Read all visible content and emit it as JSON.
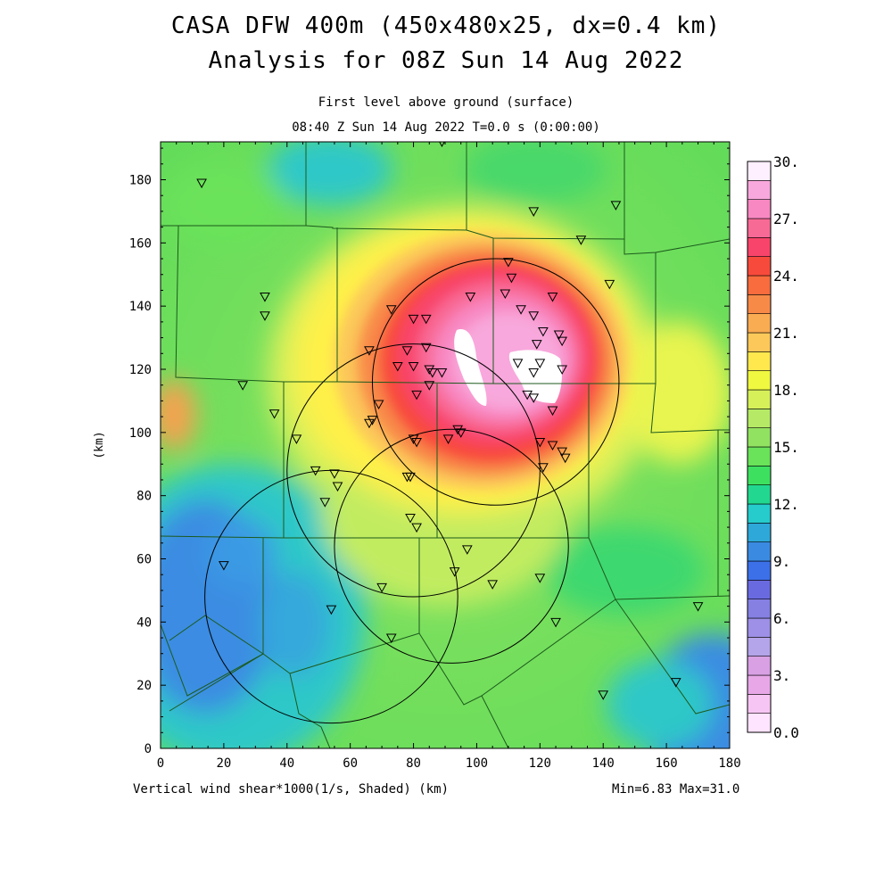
{
  "header": {
    "title_line1": "CASA DFW 400m (450x480x25, dx=0.4 km)",
    "title_line2": "Analysis for 08Z Sun 14 Aug 2022",
    "subtitle_line1": "First level above ground (surface)",
    "subtitle_line2": "08:40 Z Sun 14 Aug 2022    T=0.0 s (0:00:00)"
  },
  "footer": {
    "field_label": "Vertical wind shear*1000(1/s, Shaded)  (km)",
    "minmax": "Min=6.83 Max=31.0"
  },
  "chart_data": {
    "type": "heatmap",
    "field": "Vertical wind shear*1000 (1/s)",
    "xlabel": "(km)",
    "ylabel": "(km)",
    "xlim": [
      0,
      180
    ],
    "ylim": [
      0,
      192
    ],
    "x_ticks": [
      0,
      20,
      40,
      60,
      80,
      100,
      120,
      140,
      160,
      180
    ],
    "y_ticks": [
      0,
      20,
      40,
      60,
      80,
      100,
      120,
      140,
      160,
      180
    ],
    "min": 6.83,
    "max": 31.0,
    "colorbar": {
      "min": 0,
      "max": 30,
      "step": 1.5,
      "labels": [
        "0.0",
        "3.",
        "6.",
        "9.",
        "12.",
        "15.",
        "18.",
        "21.",
        "24.",
        "27.",
        "30."
      ],
      "label_values": [
        0,
        3,
        6,
        9,
        12,
        15,
        18,
        21,
        24,
        27,
        30
      ],
      "colors": [
        "#ffe4ff",
        "#f7c5f4",
        "#e8a8e8",
        "#d9a0e4",
        "#b4a4ea",
        "#9d90e6",
        "#8580e2",
        "#6a6ae0",
        "#3c70e8",
        "#3a8ae2",
        "#2ea8d8",
        "#26cccc",
        "#22d890",
        "#3ee060",
        "#6ae25a",
        "#92e262",
        "#b6ea66",
        "#d6f05a",
        "#f0f840",
        "#ffe84e",
        "#fcc85a",
        "#faac52",
        "#f88a48",
        "#f86c3e",
        "#f84a3c",
        "#f8446a",
        "#f86a96",
        "#f888c2",
        "#f8a8dc",
        "#fff0ff"
      ]
    },
    "range_rings": [
      {
        "center_km": [
          106,
          116
        ],
        "radius_km": 39
      },
      {
        "center_km": [
          80,
          88
        ],
        "radius_km": 40
      },
      {
        "center_km": [
          92,
          64
        ],
        "radius_km": 37
      },
      {
        "center_km": [
          54,
          48
        ],
        "radius_km": 40
      }
    ],
    "stations_km": [
      [
        13,
        179
      ],
      [
        89,
        192
      ],
      [
        118,
        170
      ],
      [
        144,
        172
      ],
      [
        133,
        161
      ],
      [
        110,
        154
      ],
      [
        111,
        149
      ],
      [
        109,
        144
      ],
      [
        98,
        143
      ],
      [
        114,
        139
      ],
      [
        118,
        137
      ],
      [
        124,
        143
      ],
      [
        142,
        147
      ],
      [
        33,
        143
      ],
      [
        33,
        137
      ],
      [
        73,
        139
      ],
      [
        80,
        136
      ],
      [
        84,
        136
      ],
      [
        121,
        132
      ],
      [
        126,
        131
      ],
      [
        127,
        129
      ],
      [
        119,
        128
      ],
      [
        66,
        126
      ],
      [
        78,
        126
      ],
      [
        84,
        127
      ],
      [
        113,
        122
      ],
      [
        120,
        122
      ],
      [
        127,
        120
      ],
      [
        75,
        121
      ],
      [
        80,
        121
      ],
      [
        85,
        120
      ],
      [
        86,
        119
      ],
      [
        89,
        119
      ],
      [
        118,
        119
      ],
      [
        26,
        115
      ],
      [
        85,
        115
      ],
      [
        81,
        112
      ],
      [
        69,
        109
      ],
      [
        116,
        112
      ],
      [
        118,
        111
      ],
      [
        124,
        107
      ],
      [
        36,
        106
      ],
      [
        67,
        104
      ],
      [
        66,
        103
      ],
      [
        94,
        101
      ],
      [
        95,
        100
      ],
      [
        43,
        98
      ],
      [
        80,
        98
      ],
      [
        81,
        97
      ],
      [
        91,
        98
      ],
      [
        120,
        97
      ],
      [
        124,
        96
      ],
      [
        127,
        94
      ],
      [
        128,
        92
      ],
      [
        121,
        89
      ],
      [
        49,
        88
      ],
      [
        55,
        87
      ],
      [
        56,
        83
      ],
      [
        78,
        86
      ],
      [
        79,
        86
      ],
      [
        52,
        78
      ],
      [
        79,
        73
      ],
      [
        81,
        70
      ],
      [
        97,
        63
      ],
      [
        20,
        58
      ],
      [
        93,
        56
      ],
      [
        120,
        54
      ],
      [
        70,
        51
      ],
      [
        105,
        52
      ],
      [
        54,
        44
      ],
      [
        125,
        40
      ],
      [
        170,
        45
      ],
      [
        73,
        35
      ],
      [
        140,
        17
      ],
      [
        163,
        21
      ]
    ]
  }
}
